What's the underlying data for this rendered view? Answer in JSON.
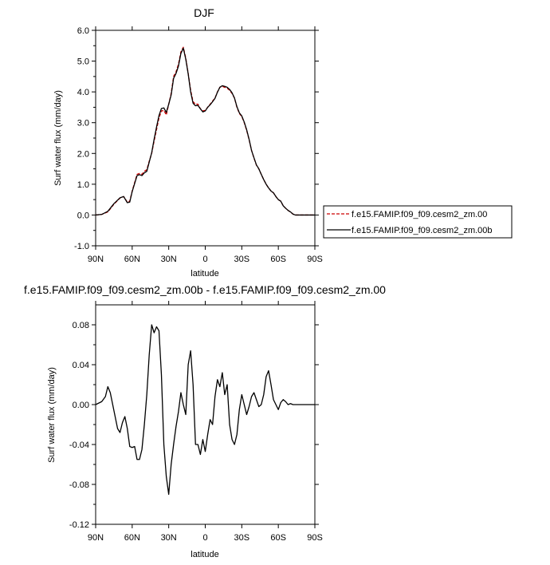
{
  "chart_data": [
    {
      "type": "line",
      "title": "DJF",
      "xlabel": "latitude",
      "ylabel": "Surf water flux (mm/day)",
      "xlim": [
        90,
        -90
      ],
      "ylim": [
        -1.0,
        6.0
      ],
      "x_tick_values": [
        90,
        60,
        30,
        0,
        -30,
        -60,
        -90
      ],
      "x_tick_labels": [
        "90N",
        "60N",
        "30N",
        "0",
        "30S",
        "60S",
        "90S"
      ],
      "y_tick_values": [
        -1,
        0,
        1,
        2,
        3,
        4,
        5,
        6
      ],
      "y_tick_labels": [
        "-1.0",
        "0.0",
        "1.0",
        "2.0",
        "3.0",
        "4.0",
        "5.0",
        "6.0"
      ],
      "legend_position": "right-bottom outside",
      "series": [
        {
          "name": "f.e15.FAMIP.f09_f09.cesm2_zm.00",
          "color": "#cc0000",
          "dash": "dashed",
          "x": [
            90,
            85,
            80,
            75,
            70,
            67,
            64,
            62,
            60,
            58,
            56,
            54,
            52,
            50,
            48,
            46,
            44,
            42,
            40,
            38,
            36,
            34,
            32,
            30,
            28,
            26,
            24,
            22,
            20,
            18,
            16,
            14,
            12,
            10,
            8,
            6,
            4,
            2,
            0,
            -2,
            -4,
            -6,
            -8,
            -10,
            -12,
            -14,
            -16,
            -18,
            -20,
            -22,
            -24,
            -26,
            -28,
            -30,
            -32,
            -34,
            -36,
            -38,
            -40,
            -42,
            -44,
            -46,
            -48,
            -50,
            -52,
            -54,
            -56,
            -58,
            -60,
            -62,
            -64,
            -66,
            -68,
            -70,
            -72,
            -74,
            -76,
            -78,
            -80,
            -85,
            -90
          ],
          "y": [
            0.0,
            0.02,
            0.1,
            0.35,
            0.55,
            0.6,
            0.42,
            0.45,
            0.78,
            1.05,
            1.32,
            1.35,
            1.32,
            1.42,
            1.47,
            1.75,
            2.0,
            2.4,
            2.78,
            3.15,
            3.38,
            3.4,
            3.25,
            3.6,
            3.95,
            4.5,
            4.65,
            4.9,
            5.3,
            5.45,
            5.1,
            4.6,
            4.05,
            3.68,
            3.6,
            3.6,
            3.45,
            3.38,
            3.4,
            3.5,
            3.6,
            3.7,
            3.8,
            4.0,
            4.15,
            4.18,
            4.15,
            4.12,
            4.05,
            3.95,
            3.8,
            3.5,
            3.3,
            3.2,
            3.0,
            2.75,
            2.45,
            2.1,
            1.85,
            1.62,
            1.5,
            1.32,
            1.15,
            1.0,
            0.88,
            0.78,
            0.72,
            0.6,
            0.5,
            0.45,
            0.3,
            0.22,
            0.15,
            0.1,
            0.03,
            0.0,
            0.0,
            0.0,
            0.0,
            0.0,
            0.0
          ]
        },
        {
          "name": "f.e15.FAMIP.f09_f09.cesm2_zm.00b",
          "color": "#000000",
          "dash": "solid",
          "x": [
            90,
            85,
            80,
            75,
            70,
            67,
            64,
            62,
            60,
            58,
            56,
            54,
            52,
            50,
            48,
            46,
            44,
            42,
            40,
            38,
            36,
            34,
            32,
            30,
            28,
            26,
            24,
            22,
            20,
            18,
            16,
            14,
            12,
            10,
            8,
            6,
            4,
            2,
            0,
            -2,
            -4,
            -6,
            -8,
            -10,
            -12,
            -14,
            -16,
            -18,
            -20,
            -22,
            -24,
            -26,
            -28,
            -30,
            -32,
            -34,
            -36,
            -38,
            -40,
            -42,
            -44,
            -46,
            -48,
            -50,
            -52,
            -54,
            -56,
            -58,
            -60,
            -62,
            -64,
            -66,
            -68,
            -70,
            -72,
            -74,
            -76,
            -78,
            -80,
            -85,
            -90
          ],
          "y": [
            0.0,
            0.02,
            0.12,
            0.37,
            0.56,
            0.6,
            0.4,
            0.42,
            0.76,
            1.02,
            1.28,
            1.31,
            1.28,
            1.37,
            1.42,
            1.72,
            2.02,
            2.46,
            2.86,
            3.23,
            3.46,
            3.48,
            3.33,
            3.6,
            3.9,
            4.44,
            4.6,
            4.84,
            5.25,
            5.42,
            5.06,
            4.58,
            4.0,
            3.63,
            3.55,
            3.56,
            3.45,
            3.35,
            3.38,
            3.5,
            3.58,
            3.68,
            3.79,
            3.99,
            4.15,
            4.2,
            4.18,
            4.15,
            4.08,
            3.97,
            3.8,
            3.52,
            3.32,
            3.22,
            3.02,
            2.77,
            2.46,
            2.1,
            1.86,
            1.63,
            1.5,
            1.32,
            1.15,
            1.0,
            0.88,
            0.78,
            0.72,
            0.6,
            0.5,
            0.45,
            0.3,
            0.22,
            0.15,
            0.1,
            0.03,
            0.0,
            0.0,
            0.0,
            0.0,
            0.0,
            0.0
          ]
        }
      ]
    },
    {
      "type": "line",
      "title": "f.e15.FAMIP.f09_f09.cesm2_zm.00b - f.e15.FAMIP.f09_f09.cesm2_zm.00",
      "xlabel": "latitude",
      "ylabel": "Surf water flux (mm/day)",
      "xlim": [
        90,
        -90
      ],
      "ylim": [
        -0.12,
        0.1
      ],
      "x_tick_values": [
        90,
        60,
        30,
        0,
        -30,
        -60,
        -90
      ],
      "x_tick_labels": [
        "90N",
        "60N",
        "30N",
        "0",
        "30S",
        "60S",
        "90S"
      ],
      "y_tick_values": [
        -0.12,
        -0.08,
        -0.04,
        0.0,
        0.04,
        0.08
      ],
      "y_tick_labels": [
        "-0.12",
        "-0.08",
        "-0.04",
        "0.00",
        "0.04",
        "0.08"
      ],
      "series": [
        {
          "color": "#000000",
          "dash": "solid",
          "x": [
            90,
            85,
            82,
            80,
            78,
            76,
            74,
            72,
            70,
            68,
            66,
            64,
            62,
            60,
            58,
            56,
            54,
            52,
            50,
            48,
            46,
            44,
            42,
            40,
            38,
            36,
            34,
            32,
            30,
            28,
            26,
            24,
            22,
            20,
            18,
            16,
            14,
            12,
            10,
            8,
            6,
            4,
            2,
            0,
            -2,
            -4,
            -6,
            -8,
            -10,
            -12,
            -14,
            -16,
            -18,
            -20,
            -22,
            -24,
            -26,
            -28,
            -30,
            -32,
            -34,
            -36,
            -38,
            -40,
            -42,
            -44,
            -46,
            -48,
            -50,
            -52,
            -54,
            -56,
            -58,
            -60,
            -62,
            -64,
            -66,
            -68,
            -70,
            -72,
            -74,
            -76,
            -78,
            -80,
            -85,
            -90
          ],
          "y": [
            0.0,
            0.003,
            0.008,
            0.018,
            0.012,
            0.0,
            -0.012,
            -0.024,
            -0.028,
            -0.018,
            -0.012,
            -0.024,
            -0.042,
            -0.043,
            -0.042,
            -0.055,
            -0.055,
            -0.045,
            -0.02,
            0.01,
            0.05,
            0.08,
            0.072,
            0.078,
            0.074,
            0.03,
            -0.04,
            -0.072,
            -0.09,
            -0.06,
            -0.04,
            -0.022,
            -0.007,
            0.012,
            0.0,
            -0.01,
            0.04,
            0.054,
            0.02,
            -0.04,
            -0.04,
            -0.05,
            -0.035,
            -0.047,
            -0.03,
            -0.015,
            -0.02,
            0.008,
            0.025,
            0.018,
            0.032,
            0.01,
            0.02,
            -0.02,
            -0.035,
            -0.04,
            -0.03,
            -0.005,
            0.01,
            0.0,
            -0.01,
            -0.002,
            0.008,
            0.012,
            0.005,
            -0.002,
            0.0,
            0.01,
            0.028,
            0.034,
            0.02,
            0.005,
            0.0,
            -0.005,
            0.002,
            0.005,
            0.003,
            0.0,
            0.001,
            0.0,
            0.0,
            0.0,
            0.0,
            0.0,
            0.0,
            0.0
          ]
        }
      ]
    }
  ]
}
